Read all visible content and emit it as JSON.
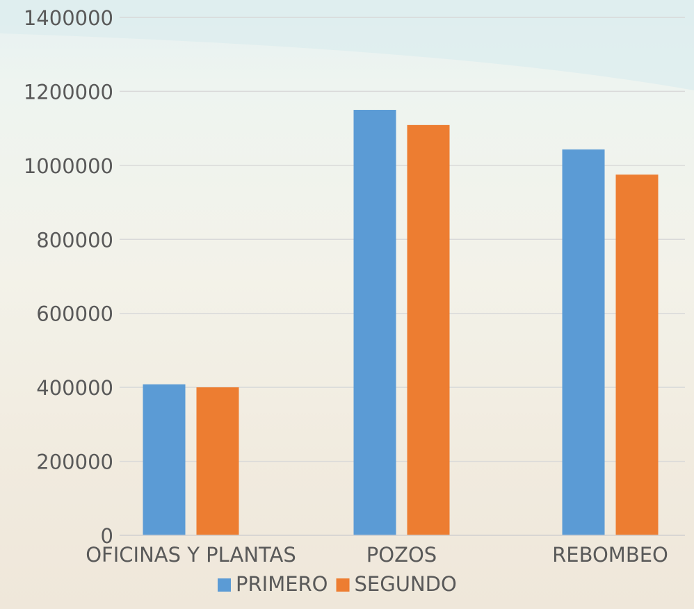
{
  "chart_data": {
    "type": "bar",
    "categories": [
      "OFICINAS Y PLANTAS",
      "POZOS",
      "REBOMBEO"
    ],
    "series": [
      {
        "name": "PRIMERO",
        "values": [
          408000,
          1150000,
          1043000
        ],
        "color": "#5b9bd5"
      },
      {
        "name": "SEGUNDO",
        "values": [
          400000,
          1109000,
          975000
        ],
        "color": "#ed7d31"
      }
    ],
    "ylim": [
      0,
      1400000
    ],
    "yticks": [
      "0",
      "200000",
      "400000",
      "600000",
      "800000",
      "1000000",
      "1200000",
      "1400000"
    ],
    "grid": true,
    "legend": "bottom",
    "title": "",
    "xlabel": "",
    "ylabel": ""
  }
}
